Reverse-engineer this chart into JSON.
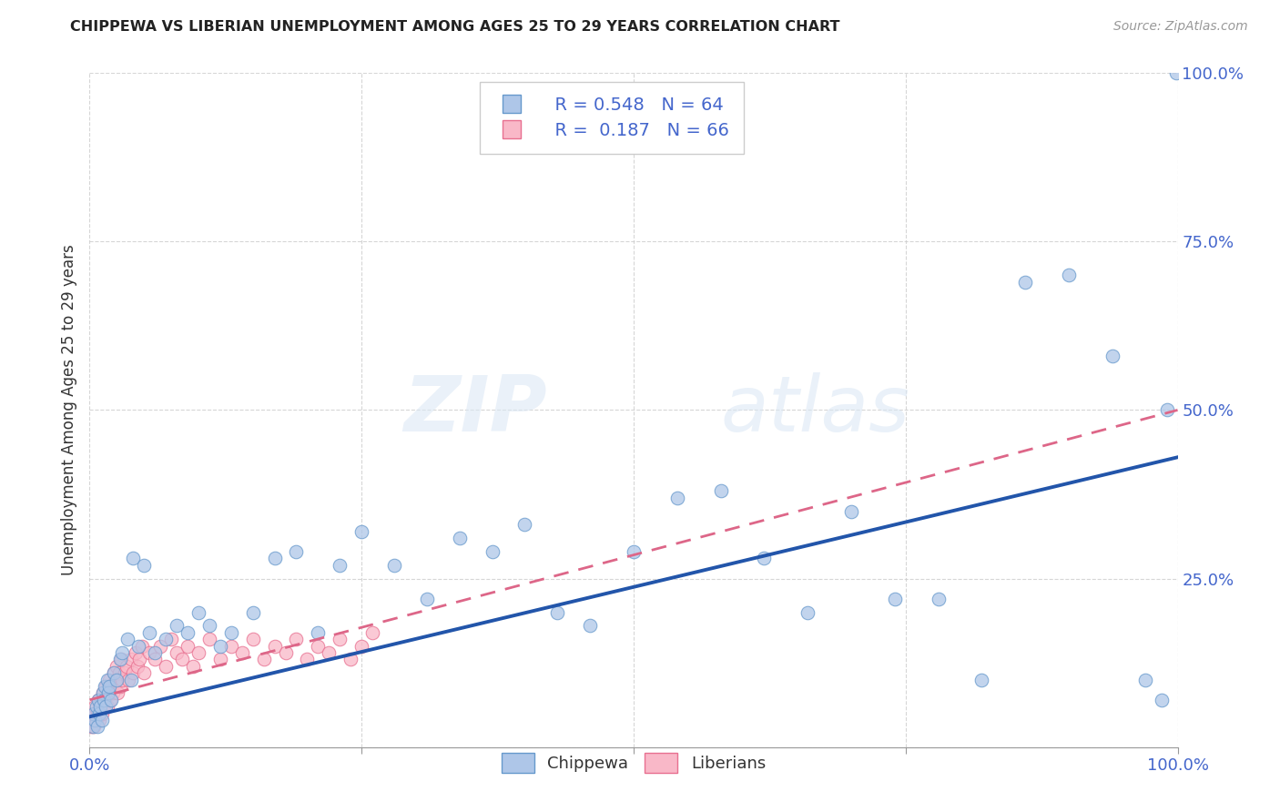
{
  "title": "CHIPPEWA VS LIBERIAN UNEMPLOYMENT AMONG AGES 25 TO 29 YEARS CORRELATION CHART",
  "source": "Source: ZipAtlas.com",
  "ylabel": "Unemployment Among Ages 25 to 29 years",
  "xlim": [
    0.0,
    1.0
  ],
  "ylim": [
    0.0,
    1.0
  ],
  "xticks": [
    0.0,
    0.25,
    0.5,
    0.75,
    1.0
  ],
  "yticks": [
    0.0,
    0.25,
    0.5,
    0.75,
    1.0
  ],
  "xticklabels": [
    "0.0%",
    "",
    "",
    "",
    "100.0%"
  ],
  "yticklabels_right": [
    "",
    "25.0%",
    "50.0%",
    "75.0%",
    "100.0%"
  ],
  "chippewa_color": "#aec6e8",
  "chippewa_edge": "#6699cc",
  "liberian_color": "#f9b8c8",
  "liberian_edge": "#e87090",
  "trend_chippewa_color": "#2255aa",
  "trend_liberian_color": "#dd6688",
  "background_color": "#ffffff",
  "watermark_zip": "ZIP",
  "watermark_atlas": "atlas",
  "legend_r_chippewa": "R = 0.548",
  "legend_n_chippewa": "N = 64",
  "legend_r_liberian": "R =  0.187",
  "legend_n_liberian": "N = 66",
  "tick_color": "#4466cc",
  "chippewa_x": [
    0.003,
    0.004,
    0.005,
    0.006,
    0.007,
    0.008,
    0.009,
    0.01,
    0.011,
    0.012,
    0.013,
    0.014,
    0.015,
    0.016,
    0.017,
    0.018,
    0.02,
    0.022,
    0.025,
    0.028,
    0.03,
    0.035,
    0.038,
    0.04,
    0.045,
    0.05,
    0.055,
    0.06,
    0.07,
    0.08,
    0.09,
    0.1,
    0.11,
    0.12,
    0.13,
    0.15,
    0.17,
    0.19,
    0.21,
    0.23,
    0.25,
    0.28,
    0.31,
    0.34,
    0.37,
    0.4,
    0.43,
    0.46,
    0.5,
    0.54,
    0.58,
    0.62,
    0.66,
    0.7,
    0.74,
    0.78,
    0.82,
    0.86,
    0.9,
    0.94,
    0.97,
    0.985,
    0.99,
    0.999
  ],
  "chippewa_y": [
    0.03,
    0.05,
    0.04,
    0.06,
    0.03,
    0.07,
    0.05,
    0.06,
    0.04,
    0.08,
    0.07,
    0.09,
    0.06,
    0.1,
    0.08,
    0.09,
    0.07,
    0.11,
    0.1,
    0.13,
    0.14,
    0.16,
    0.1,
    0.28,
    0.15,
    0.27,
    0.17,
    0.14,
    0.16,
    0.18,
    0.17,
    0.2,
    0.18,
    0.15,
    0.17,
    0.2,
    0.28,
    0.29,
    0.17,
    0.27,
    0.32,
    0.27,
    0.22,
    0.31,
    0.29,
    0.33,
    0.2,
    0.18,
    0.29,
    0.37,
    0.38,
    0.28,
    0.2,
    0.35,
    0.22,
    0.22,
    0.1,
    0.69,
    0.7,
    0.58,
    0.1,
    0.07,
    0.5,
    1.0
  ],
  "liberian_x": [
    0.001,
    0.002,
    0.003,
    0.004,
    0.005,
    0.006,
    0.007,
    0.008,
    0.009,
    0.01,
    0.011,
    0.012,
    0.013,
    0.014,
    0.015,
    0.016,
    0.017,
    0.018,
    0.019,
    0.02,
    0.021,
    0.022,
    0.023,
    0.024,
    0.025,
    0.026,
    0.027,
    0.028,
    0.029,
    0.03,
    0.032,
    0.034,
    0.036,
    0.038,
    0.04,
    0.042,
    0.044,
    0.046,
    0.048,
    0.05,
    0.055,
    0.06,
    0.065,
    0.07,
    0.075,
    0.08,
    0.085,
    0.09,
    0.095,
    0.1,
    0.11,
    0.12,
    0.13,
    0.14,
    0.15,
    0.16,
    0.17,
    0.18,
    0.19,
    0.2,
    0.21,
    0.22,
    0.23,
    0.24,
    0.25,
    0.26
  ],
  "liberian_y": [
    0.03,
    0.04,
    0.05,
    0.03,
    0.06,
    0.04,
    0.05,
    0.07,
    0.04,
    0.06,
    0.05,
    0.08,
    0.06,
    0.07,
    0.09,
    0.06,
    0.08,
    0.1,
    0.07,
    0.09,
    0.08,
    0.11,
    0.09,
    0.1,
    0.12,
    0.08,
    0.11,
    0.09,
    0.13,
    0.1,
    0.11,
    0.12,
    0.1,
    0.13,
    0.11,
    0.14,
    0.12,
    0.13,
    0.15,
    0.11,
    0.14,
    0.13,
    0.15,
    0.12,
    0.16,
    0.14,
    0.13,
    0.15,
    0.12,
    0.14,
    0.16,
    0.13,
    0.15,
    0.14,
    0.16,
    0.13,
    0.15,
    0.14,
    0.16,
    0.13,
    0.15,
    0.14,
    0.16,
    0.13,
    0.15,
    0.17
  ],
  "chippewa_trend_x0": 0.0,
  "chippewa_trend_y0": 0.045,
  "chippewa_trend_x1": 1.0,
  "chippewa_trend_y1": 0.43,
  "liberian_trend_x0": 0.0,
  "liberian_trend_y0": 0.07,
  "liberian_trend_x1": 1.0,
  "liberian_trend_y1": 0.5
}
